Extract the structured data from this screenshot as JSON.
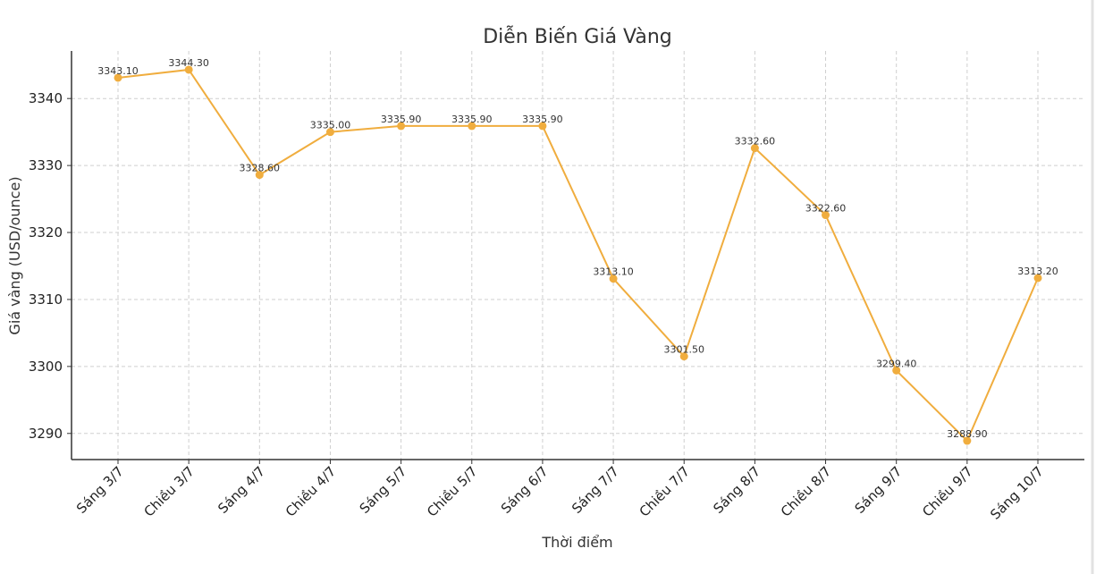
{
  "chart_data": {
    "type": "line",
    "title": "Diễn Biến Giá Vàng",
    "xlabel": "Thời điểm",
    "ylabel": "Giá vàng (USD/ounce)",
    "categories": [
      "Sáng 3/7",
      "Chiều 3/7",
      "Sáng 4/7",
      "Chiều 4/7",
      "Sáng 5/7",
      "Chiều 5/7",
      "Sáng 6/7",
      "Sáng 7/7",
      "Chiều 7/7",
      "Sáng 8/7",
      "Chiều 8/7",
      "Sáng 9/7",
      "Chiều 9/7",
      "Sáng 10/7"
    ],
    "values": [
      3343.1,
      3344.3,
      3328.6,
      3335.0,
      3335.9,
      3335.9,
      3335.9,
      3313.1,
      3301.5,
      3332.6,
      3322.6,
      3299.4,
      3288.9,
      3313.2
    ],
    "data_labels": [
      "3343.10",
      "3344.30",
      "3328.60",
      "3335.00",
      "3335.90",
      "3335.90",
      "3335.90",
      "3313.10",
      "3301.50",
      "3332.60",
      "3322.60",
      "3299.40",
      "3288.90",
      "3313.20"
    ],
    "yticks": [
      "3290",
      "3300",
      "3310",
      "3320",
      "3330",
      "3340"
    ],
    "ylim": [
      3286.1,
      3347.1
    ],
    "grid": true,
    "color": "#f0ad3e"
  }
}
